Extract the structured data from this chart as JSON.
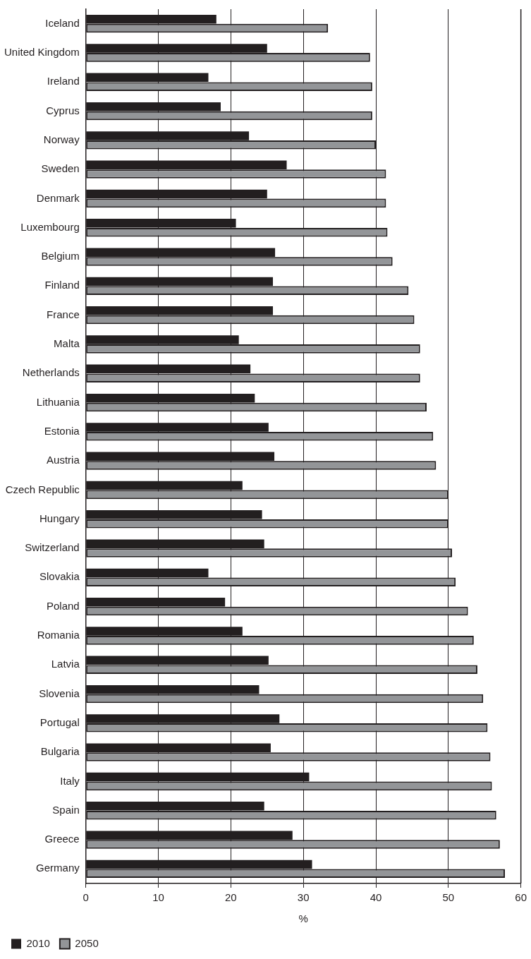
{
  "chart_data": {
    "type": "bar",
    "orientation": "horizontal",
    "xlabel": "%",
    "categories": [
      "Iceland",
      "United Kingdom",
      "Ireland",
      "Cyprus",
      "Norway",
      "Sweden",
      "Denmark",
      "Luxembourg",
      "Belgium",
      "Finland",
      "France",
      "Malta",
      "Netherlands",
      "Lithuania",
      "Estonia",
      "Austria",
      "Czech Republic",
      "Hungary",
      "Switzerland",
      "Slovakia",
      "Poland",
      "Romania",
      "Latvia",
      "Slovenia",
      "Portugal",
      "Bulgaria",
      "Italy",
      "Spain",
      "Greece",
      "Germany"
    ],
    "series": [
      {
        "name": "2010",
        "color": "#231f20",
        "values": [
          18.0,
          25.0,
          16.9,
          18.6,
          22.5,
          27.7,
          25.0,
          20.7,
          26.1,
          25.8,
          25.8,
          21.1,
          22.7,
          23.3,
          25.2,
          26.0,
          21.6,
          24.3,
          24.6,
          16.9,
          19.2,
          21.6,
          25.2,
          23.9,
          26.7,
          25.5,
          30.8,
          24.6,
          28.5,
          31.2
        ]
      },
      {
        "name": "2050",
        "color": "#939598",
        "values": [
          33.4,
          39.2,
          39.5,
          39.5,
          40.0,
          41.4,
          41.4,
          41.6,
          42.3,
          44.5,
          45.3,
          46.1,
          46.1,
          47.0,
          47.9,
          48.3,
          50.0,
          50.0,
          50.5,
          51.0,
          52.7,
          53.5,
          54.0,
          54.8,
          55.4,
          55.8,
          56.0,
          56.6,
          57.1,
          57.8
        ]
      }
    ],
    "xlim": [
      0,
      60
    ],
    "xticks": [
      0,
      10,
      20,
      30,
      40,
      50,
      60
    ],
    "grid": "x",
    "legend": "bottom left"
  }
}
